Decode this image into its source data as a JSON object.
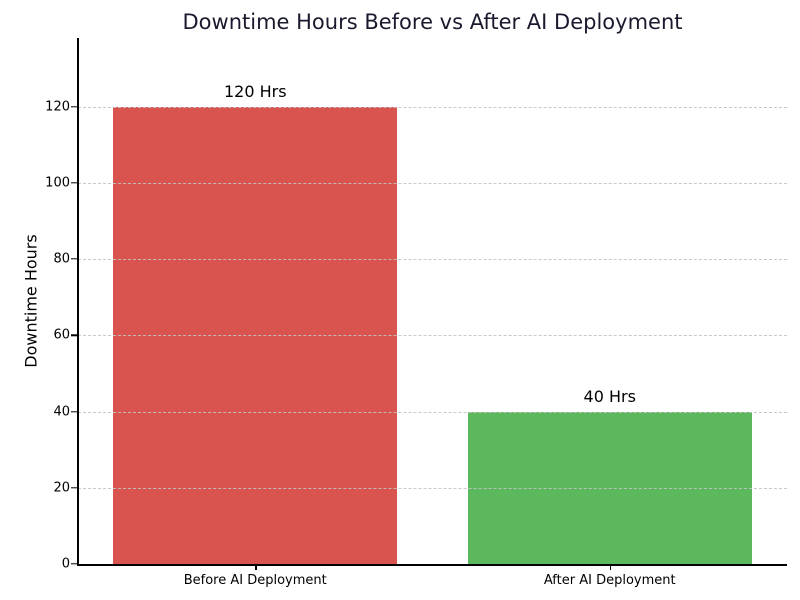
{
  "chart_data": {
    "type": "bar",
    "title": "Downtime Hours Before vs After AI Deployment",
    "xlabel": "",
    "ylabel": "Downtime Hours",
    "categories": [
      "Before AI Deployment",
      "After AI Deployment"
    ],
    "values": [
      120,
      40
    ],
    "bar_labels": [
      "120 Hrs",
      "40 Hrs"
    ],
    "bar_colors": [
      "#d9534f",
      "#5cb85c"
    ],
    "yticks": [
      0,
      20,
      40,
      60,
      80,
      100,
      120
    ],
    "ylim": [
      0,
      138
    ],
    "grid": {
      "axis": "y",
      "style": "dashed",
      "color": "#cccccc",
      "drawn_over_bars": true
    },
    "legend": "none",
    "bar_width_fraction": 0.8,
    "colors": {
      "title": "#1a1a2e",
      "text": "#000000",
      "axis": "#000000",
      "background": "#ffffff"
    }
  }
}
